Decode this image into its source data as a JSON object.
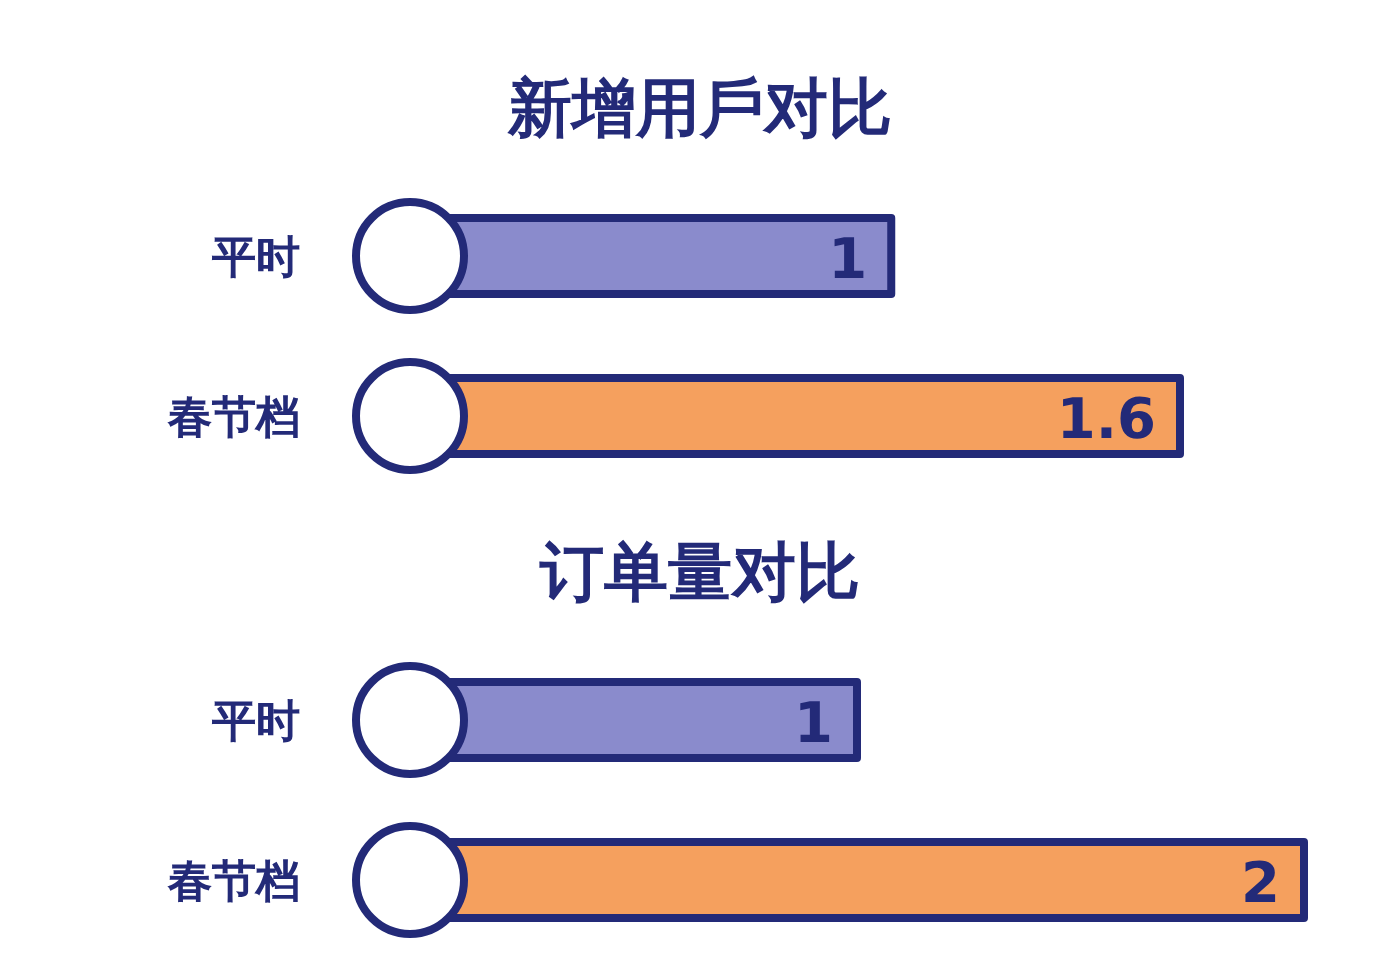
{
  "chart_data": [
    {
      "type": "bar",
      "orientation": "horizontal",
      "title": "新增用戶对比",
      "categories": [
        "平时",
        "春节档"
      ],
      "values": [
        1,
        1.6
      ],
      "colors": [
        "#8a8bcc",
        "#f5a05e"
      ],
      "data_labels": true
    },
    {
      "type": "bar",
      "orientation": "horizontal",
      "title": "订单量对比",
      "categories": [
        "平时",
        "春节档"
      ],
      "values": [
        1,
        2
      ],
      "colors": [
        "#8a8bcc",
        "#f5a05e"
      ],
      "data_labels": true
    }
  ]
}
